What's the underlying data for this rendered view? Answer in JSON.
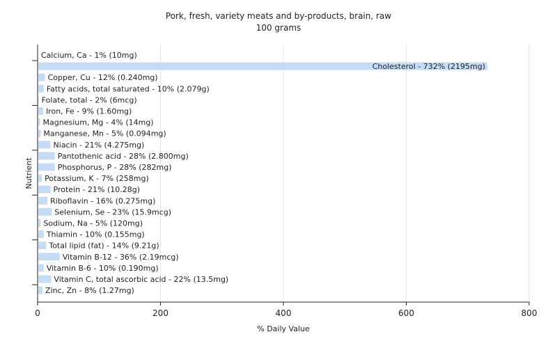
{
  "chart_data": {
    "type": "bar",
    "orientation": "horizontal",
    "title": "Pork, fresh, variety meats and by-products, brain, raw",
    "subtitle": "100 grams",
    "xlabel": "% Daily Value",
    "ylabel": "Nutrient",
    "xlim": [
      0,
      800
    ],
    "xticks": [
      0,
      200,
      400,
      600,
      800
    ],
    "grid": true,
    "bar_color": "#c6dcf6",
    "categories": [
      "Calcium, Ca",
      "Cholesterol",
      "Copper, Cu",
      "Fatty acids, total saturated",
      "Folate, total",
      "Iron, Fe",
      "Magnesium, Mg",
      "Manganese, Mn",
      "Niacin",
      "Pantothenic acid",
      "Phosphorus, P",
      "Potassium, K",
      "Protein",
      "Riboflavin",
      "Selenium, Se",
      "Sodium, Na",
      "Thiamin",
      "Total lipid (fat)",
      "Vitamin B-12",
      "Vitamin B-6",
      "Vitamin C, total ascorbic acid",
      "Zinc, Zn"
    ],
    "values": [
      1,
      732,
      12,
      10,
      2,
      9,
      4,
      5,
      21,
      28,
      28,
      7,
      21,
      16,
      23,
      5,
      10,
      14,
      36,
      10,
      22,
      8
    ],
    "labels": [
      "Calcium, Ca - 1% (10mg)",
      "Cholesterol - 732% (2195mg)",
      "Copper, Cu - 12% (0.240mg)",
      "Fatty acids, total saturated - 10% (2.079g)",
      "Folate, total - 2% (6mcg)",
      "Iron, Fe - 9% (1.60mg)",
      "Magnesium, Mg - 4% (14mg)",
      "Manganese, Mn - 5% (0.094mg)",
      "Niacin - 21% (4.275mg)",
      "Pantothenic acid - 28% (2.800mg)",
      "Phosphorus, P - 28% (282mg)",
      "Potassium, K - 7% (258mg)",
      "Protein - 21% (10.28g)",
      "Riboflavin - 16% (0.275mg)",
      "Selenium, Se - 23% (15.9mcg)",
      "Sodium, Na - 5% (120mg)",
      "Thiamin - 10% (0.155mg)",
      "Total lipid (fat) - 14% (9.21g)",
      "Vitamin B-12 - 36% (2.19mcg)",
      "Vitamin B-6 - 10% (0.190mg)",
      "Vitamin C, total ascorbic acid - 22% (13.5mg)",
      "Zinc, Zn - 8% (1.27mg)"
    ]
  }
}
